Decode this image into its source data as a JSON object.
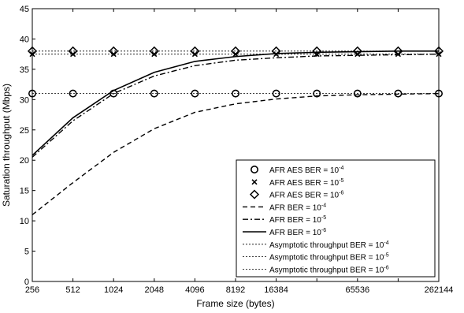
{
  "chart_data": {
    "type": "line",
    "xlabel": "Frame size (bytes)",
    "ylabel": "Saturation throughput (Mbps)",
    "x_scale": "log2",
    "xlim": [
      256,
      262144
    ],
    "ylim": [
      0,
      45
    ],
    "grid": false,
    "legend_position": "bottom-right",
    "x_ticks": [
      {
        "value": 256,
        "label": "256"
      },
      {
        "value": 512,
        "label": "512"
      },
      {
        "value": 1024,
        "label": "1024"
      },
      {
        "value": 2048,
        "label": "2048"
      },
      {
        "value": 4096,
        "label": "4096"
      },
      {
        "value": 8192,
        "label": "8192"
      },
      {
        "value": 16384,
        "label": "16384"
      },
      {
        "value": 32768,
        "label": ""
      },
      {
        "value": 65536,
        "label": "65536"
      },
      {
        "value": 131072,
        "label": ""
      },
      {
        "value": 262144,
        "label": "262144"
      }
    ],
    "y_ticks": [
      0,
      5,
      10,
      15,
      20,
      25,
      30,
      35,
      40,
      45
    ],
    "x": [
      256,
      512,
      1024,
      2048,
      4096,
      8192,
      16384,
      32768,
      65536,
      131072,
      262144
    ],
    "series": [
      {
        "name": "AFR AES BER = 10^-4",
        "label_base": "AFR AES BER = 10",
        "label_exp": "-4",
        "style": "marker",
        "marker": "circle",
        "values": [
          31.0,
          31.0,
          31.0,
          31.0,
          31.0,
          31.0,
          31.0,
          31.0,
          31.0,
          31.0,
          31.0
        ]
      },
      {
        "name": "AFR AES BER = 10^-5",
        "label_base": "AFR AES BER = 10",
        "label_exp": "-5",
        "style": "marker",
        "marker": "x",
        "values": [
          37.5,
          37.5,
          37.5,
          37.5,
          37.5,
          37.5,
          37.5,
          37.5,
          37.5,
          37.5,
          37.5
        ]
      },
      {
        "name": "AFR AES BER = 10^-6",
        "label_base": "AFR AES BER = 10",
        "label_exp": "-6",
        "style": "marker",
        "marker": "diamond",
        "values": [
          38.0,
          38.0,
          38.0,
          38.0,
          38.0,
          38.0,
          38.0,
          38.0,
          38.0,
          38.0,
          38.0
        ]
      },
      {
        "name": "AFR BER = 10^-4",
        "label_base": "AFR BER = 10",
        "label_exp": "-4",
        "style": "line",
        "dash": "6,4",
        "stroke_width": 1.4,
        "values": [
          11.0,
          16.3,
          21.3,
          25.2,
          27.9,
          29.3,
          30.1,
          30.6,
          30.8,
          30.9,
          31.0
        ]
      },
      {
        "name": "AFR BER = 10^-5",
        "label_base": "AFR BER = 10",
        "label_exp": "-5",
        "style": "line",
        "dash": "7,3,2,3",
        "stroke_width": 1.4,
        "values": [
          20.5,
          26.5,
          31.0,
          33.9,
          35.6,
          36.5,
          36.9,
          37.2,
          37.3,
          37.4,
          37.5
        ]
      },
      {
        "name": "AFR BER = 10^-6",
        "label_base": "AFR BER = 10",
        "label_exp": "-6",
        "style": "line",
        "dash": "",
        "stroke_width": 1.6,
        "values": [
          20.8,
          27.0,
          31.5,
          34.5,
          36.3,
          37.1,
          37.6,
          37.8,
          37.9,
          38.0,
          38.0
        ]
      },
      {
        "name": "Asymptotic throughput BER = 10^-4",
        "label_base": "Asymptotic throughput BER = 10",
        "label_exp": "-4",
        "style": "line",
        "dash": "2,2",
        "stroke_width": 0.8,
        "values": [
          31.0,
          31.0,
          31.0,
          31.0,
          31.0,
          31.0,
          31.0,
          31.0,
          31.0,
          31.0,
          31.0
        ]
      },
      {
        "name": "Asymptotic throughput BER = 10^-5",
        "label_base": "Asymptotic throughput BER = 10",
        "label_exp": "-5",
        "style": "line",
        "dash": "2,2",
        "stroke_width": 0.8,
        "values": [
          37.5,
          37.5,
          37.5,
          37.5,
          37.5,
          37.5,
          37.5,
          37.5,
          37.5,
          37.5,
          37.5
        ]
      },
      {
        "name": "Asymptotic throughput BER = 10^-6",
        "label_base": "Asymptotic throughput BER = 10",
        "label_exp": "-6",
        "style": "line",
        "dash": "2,2",
        "stroke_width": 0.8,
        "values": [
          38.0,
          38.0,
          38.0,
          38.0,
          38.0,
          38.0,
          38.0,
          38.0,
          38.0,
          38.0,
          38.0
        ]
      }
    ]
  }
}
